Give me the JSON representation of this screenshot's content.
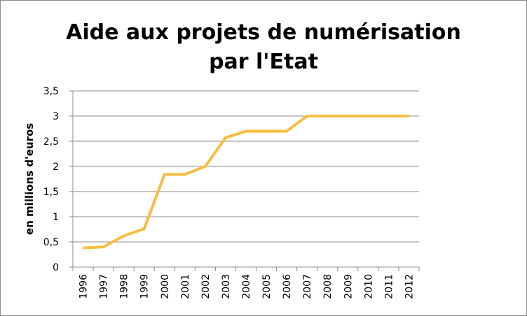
{
  "chart_data": {
    "type": "line",
    "title": "Aide aux projets de numérisation par l'Etat",
    "title_lines": [
      "Aide aux projets de numérisation",
      "par l'Etat"
    ],
    "xlabel": "",
    "ylabel": "en millions d'euros",
    "ylim": [
      0,
      3.5
    ],
    "yticks": [
      0,
      0.5,
      1,
      1.5,
      2,
      2.5,
      3,
      3.5
    ],
    "ytick_labels": [
      "0",
      "0,5",
      "1",
      "1,5",
      "2",
      "2,5",
      "3",
      "3,5"
    ],
    "grid": true,
    "legend": "none",
    "categories": [
      "1996",
      "1997",
      "1998",
      "1999",
      "2000",
      "2001",
      "2002",
      "2003",
      "2004",
      "2005",
      "2006",
      "2007",
      "2008",
      "2009",
      "2010",
      "2011",
      "2012"
    ],
    "series": [
      {
        "color": "#f6be41",
        "values": [
          0.38,
          0.4,
          0.62,
          0.76,
          1.84,
          1.84,
          2.0,
          2.57,
          2.7,
          2.7,
          2.7,
          3.0,
          3.0,
          3.0,
          3.0,
          3.0,
          3.0
        ]
      }
    ]
  }
}
